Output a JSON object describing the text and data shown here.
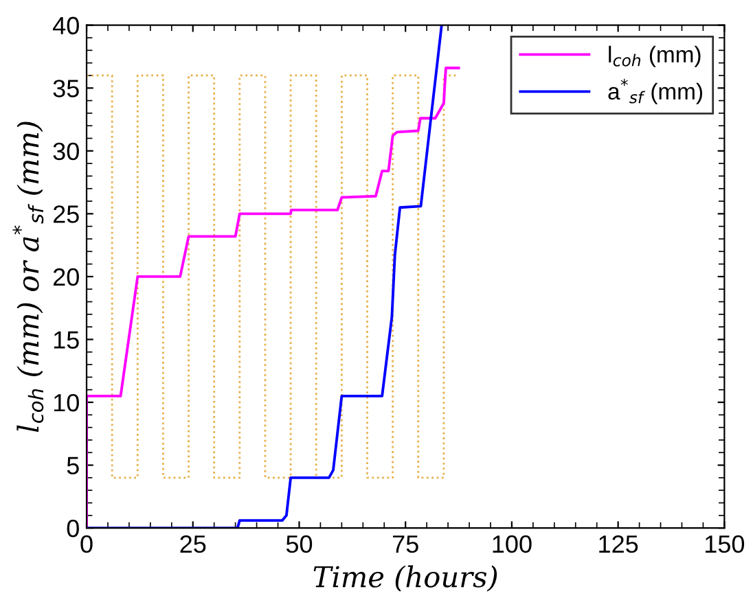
{
  "chart_data": {
    "type": "line",
    "xlabel": "Time (hours)",
    "ylabel": "l$_{coh}$ (mm) or a$^{*}$$_{sf}$ (mm)",
    "xlim": [
      0,
      150
    ],
    "ylim": [
      0,
      40
    ],
    "xticks": [
      0,
      25,
      50,
      75,
      100,
      125,
      150
    ],
    "yticks": [
      0,
      5,
      10,
      15,
      20,
      25,
      30,
      35,
      40
    ],
    "grid": false,
    "legend": "top right",
    "series": [
      {
        "color": "#e6b04a",
        "line_style": "dotted",
        "x": [
          0,
          6,
          6,
          12,
          12,
          18,
          18,
          24,
          24,
          30,
          30,
          36,
          36,
          42,
          42,
          48,
          48,
          54,
          54,
          60,
          60,
          66,
          66,
          72,
          72,
          78,
          78,
          84,
          84,
          87.5
        ],
        "values": [
          36,
          36,
          4,
          4,
          36,
          36,
          4,
          4,
          36,
          36,
          4,
          4,
          36,
          36,
          4,
          4,
          36,
          36,
          4,
          4,
          36,
          36,
          4,
          4,
          36,
          36,
          4,
          4,
          36,
          36
        ]
      },
      {
        "name": "l$_{coh}$ (mm)",
        "color": "#ff00ff",
        "line_style": "solid",
        "x": [
          0,
          0,
          8,
          12,
          22,
          24,
          35,
          36,
          48,
          48.1,
          59,
          60,
          68,
          69.5,
          71,
          72,
          73,
          78,
          78.5,
          82,
          84,
          84.2,
          84.5,
          87.5
        ],
        "values": [
          0,
          10.5,
          10.5,
          20,
          20,
          23.2,
          23.2,
          25,
          25,
          25.3,
          25.3,
          26.3,
          26.4,
          28.4,
          28.4,
          31.2,
          31.5,
          31.6,
          32.6,
          32.6,
          33.8,
          35,
          36.6,
          36.6
        ]
      },
      {
        "name": "a$^{*}$$_{sf}$ (mm)",
        "color": "#0000ff",
        "line_style": "solid",
        "x": [
          0,
          35.5,
          36,
          46,
          47,
          48,
          57,
          58,
          60,
          69.5,
          71.8,
          72.5,
          73.7,
          78.6,
          83.5
        ],
        "values": [
          0,
          0,
          0.6,
          0.6,
          1,
          4,
          4,
          4.6,
          10.5,
          10.5,
          16.8,
          21.7,
          25.5,
          25.6,
          40
        ]
      }
    ]
  }
}
